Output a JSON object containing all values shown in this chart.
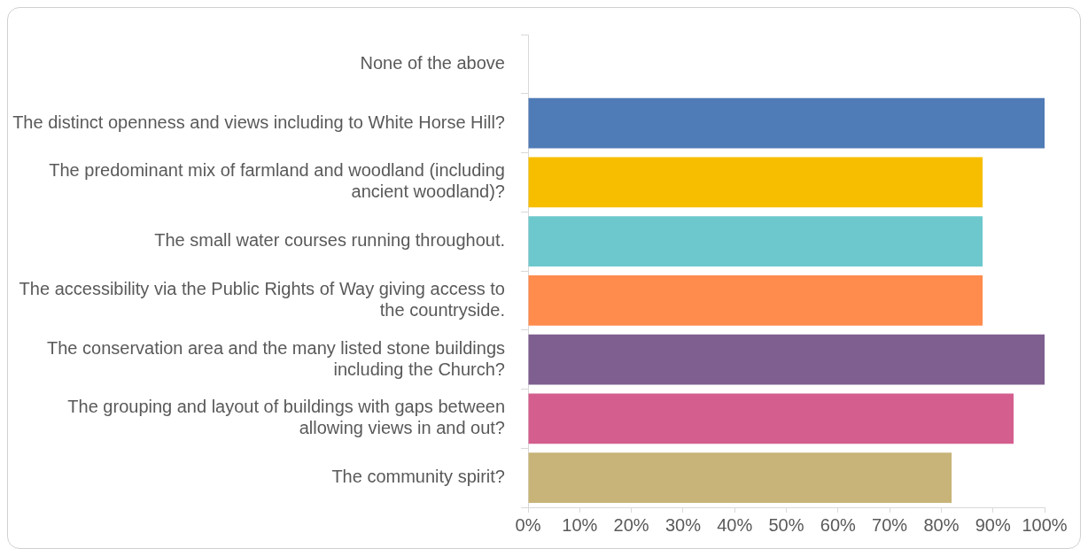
{
  "chart_data": {
    "type": "bar",
    "orientation": "horizontal",
    "categories": [
      "None of the above",
      "The distinct openness and views including to White Horse Hill?",
      "The predominant mix of farmland and woodland (including ancient woodland)?",
      "The small water courses running throughout.",
      "The accessibility via the Public Rights of Way giving access to the countryside.",
      "The conservation area and the many listed stone buildings including the Church?",
      "The grouping and layout of buildings with gaps between allowing views in and out?",
      "The community spirit?"
    ],
    "values": [
      0,
      100,
      88,
      88,
      88,
      100,
      94,
      82
    ],
    "colors": [
      "#a5a5a5",
      "#4f7bb6",
      "#f7be00",
      "#6cc8cc",
      "#ff8b4d",
      "#7f5f8f",
      "#d45e8e",
      "#c8b478"
    ],
    "xlim": [
      0,
      100
    ],
    "xticks": [
      {
        "value": 0,
        "label": "0%"
      },
      {
        "value": 10,
        "label": "10%"
      },
      {
        "value": 20,
        "label": "20%"
      },
      {
        "value": 30,
        "label": "30%"
      },
      {
        "value": 40,
        "label": "40%"
      },
      {
        "value": 50,
        "label": "50%"
      },
      {
        "value": 60,
        "label": "60%"
      },
      {
        "value": 70,
        "label": "70%"
      },
      {
        "value": 80,
        "label": "80%"
      },
      {
        "value": 90,
        "label": "90%"
      },
      {
        "value": 100,
        "label": "100%"
      }
    ],
    "grid": false,
    "legend": false
  }
}
